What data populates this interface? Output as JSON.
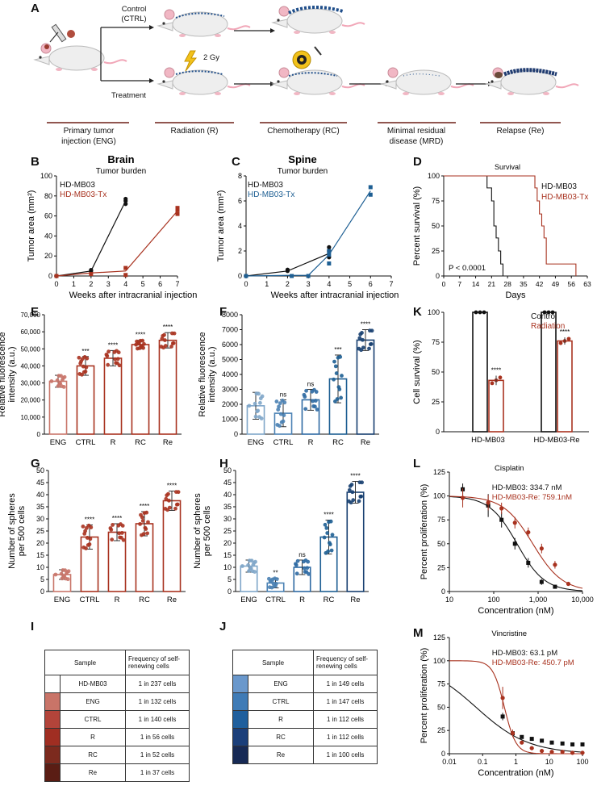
{
  "panels": {
    "A": {
      "letter": "A",
      "control_label": "Control (CTRL)",
      "treatment_label": "Treatment",
      "dose_label": "2 Gy",
      "steps": [
        "Primary tumor injection (ENG)",
        "Radiation (R)",
        "Chemotherapy (RC)",
        "Minimal residual disease (MRD)",
        "Relapse (Re)"
      ]
    },
    "B": {
      "letter": "B",
      "title": "Brain",
      "subtitle": "Tumor burden"
    },
    "C": {
      "letter": "C",
      "title": "Spine",
      "subtitle": "Tumor burden"
    },
    "D": {
      "letter": "D",
      "title": "Survival",
      "pvalue_label": "P < 0.0001"
    },
    "E": {
      "letter": "E"
    },
    "F": {
      "letter": "F"
    },
    "G": {
      "letter": "G"
    },
    "H": {
      "letter": "H"
    },
    "I": {
      "letter": "I"
    },
    "J": {
      "letter": "J"
    },
    "K": {
      "letter": "K"
    },
    "L": {
      "letter": "L",
      "title": "Cisplatin"
    },
    "M": {
      "letter": "M",
      "title": "Vincristine"
    }
  },
  "colors": {
    "red": "#a8321f",
    "blue": "#1e5f93",
    "black": "#111111",
    "lightblue": "#7fa6c9"
  },
  "chart_data": [
    {
      "id": "B",
      "type": "line",
      "title": "Brain",
      "subtitle": "Tumor burden",
      "xlabel": "Weeks after intracranial injection",
      "ylabel": "Tumor area (mm²)",
      "xlim": [
        0,
        7
      ],
      "ylim": [
        0,
        100
      ],
      "xticks": [
        0,
        1,
        2,
        3,
        4,
        5,
        6,
        7
      ],
      "yticks": [
        0,
        20,
        40,
        60,
        80,
        100
      ],
      "series": [
        {
          "name": "HD-MB03",
          "color": "#111111",
          "x": [
            0,
            2,
            4
          ],
          "y": [
            0,
            5,
            75
          ],
          "points": [
            [
              0,
              0
            ],
            [
              2,
              5
            ],
            [
              2,
              6
            ],
            [
              4,
              72
            ],
            [
              4,
              75
            ],
            [
              4,
              77
            ]
          ]
        },
        {
          "name": "HD-MB03-Tx",
          "color": "#a8321f",
          "x": [
            0,
            2,
            4,
            7
          ],
          "y": [
            0,
            3,
            5,
            65
          ],
          "points": [
            [
              0,
              0
            ],
            [
              2,
              2
            ],
            [
              4,
              1
            ],
            [
              4,
              8
            ],
            [
              7,
              62
            ],
            [
              7,
              66
            ],
            [
              7,
              68
            ]
          ]
        }
      ]
    },
    {
      "id": "C",
      "type": "line",
      "title": "Spine",
      "subtitle": "Tumor burden",
      "xlabel": "Weeks after intracranial injection",
      "ylabel": "Tumor area (mm²)",
      "xlim": [
        0,
        7
      ],
      "ylim": [
        0,
        8
      ],
      "xticks": [
        0,
        1,
        2,
        3,
        4,
        5,
        6,
        7
      ],
      "yticks": [
        0,
        2,
        4,
        6,
        8
      ],
      "series": [
        {
          "name": "HD-MB03",
          "color": "#111111",
          "x": [
            0,
            2,
            4
          ],
          "y": [
            0,
            0.4,
            1.8
          ],
          "points": [
            [
              0,
              0
            ],
            [
              2,
              0.4
            ],
            [
              2,
              0.5
            ],
            [
              4,
              1.5
            ],
            [
              4,
              2.0
            ],
            [
              4,
              2.3
            ]
          ]
        },
        {
          "name": "HD-MB03-Tx",
          "color": "#1e5f93",
          "x": [
            0,
            2,
            3,
            4,
            6
          ],
          "y": [
            0,
            0.05,
            0.05,
            1.7,
            6.8
          ],
          "points": [
            [
              0,
              0
            ],
            [
              2.2,
              0
            ],
            [
              3,
              0
            ],
            [
              4,
              1.0
            ],
            [
              4,
              1.7
            ],
            [
              4,
              2.0
            ],
            [
              6,
              6.5
            ],
            [
              6,
              7.1
            ]
          ]
        }
      ]
    },
    {
      "id": "D",
      "type": "line",
      "title": "Survival",
      "xlabel": "Days",
      "ylabel": "Percent survival (%)",
      "xlim": [
        0,
        63
      ],
      "ylim": [
        0,
        100
      ],
      "xticks": [
        0,
        7,
        14,
        21,
        28,
        35,
        42,
        49,
        56,
        63
      ],
      "yticks": [
        0,
        25,
        50,
        75,
        100
      ],
      "series": [
        {
          "name": "HD-MB03",
          "color": "#111111",
          "steps": [
            [
              0,
              100
            ],
            [
              19,
              100
            ],
            [
              19,
              88
            ],
            [
              21,
              88
            ],
            [
              21,
              75
            ],
            [
              22,
              75
            ],
            [
              22,
              50
            ],
            [
              23,
              50
            ],
            [
              23,
              38
            ],
            [
              24,
              38
            ],
            [
              24,
              25
            ],
            [
              25,
              25
            ],
            [
              25,
              12
            ],
            [
              26,
              12
            ],
            [
              26,
              0
            ]
          ]
        },
        {
          "name": "HD-MB03-Tx",
          "color": "#a8321f",
          "steps": [
            [
              0,
              100
            ],
            [
              40,
              100
            ],
            [
              40,
              88
            ],
            [
              41,
              88
            ],
            [
              41,
              75
            ],
            [
              42,
              75
            ],
            [
              42,
              62
            ],
            [
              43,
              62
            ],
            [
              43,
              50
            ],
            [
              44,
              50
            ],
            [
              44,
              38
            ],
            [
              45,
              38
            ],
            [
              45,
              12
            ],
            [
              58,
              12
            ],
            [
              58,
              0
            ]
          ]
        }
      ],
      "annotation": "P < 0.0001"
    },
    {
      "id": "E",
      "type": "bar",
      "ylabel": "Relative fluorescence intensity (a.u.)",
      "categories": [
        "ENG",
        "CTRL",
        "R",
        "RC",
        "Re"
      ],
      "values": [
        31000,
        40000,
        44500,
        52500,
        55000
      ],
      "errors": [
        3500,
        5500,
        4500,
        2500,
        4500
      ],
      "significance": [
        "",
        "***",
        "****",
        "****",
        "****"
      ],
      "ylim": [
        0,
        70000
      ],
      "yticks": [
        0,
        10000,
        20000,
        30000,
        40000,
        50000,
        60000,
        70000
      ],
      "ytick_labels": [
        "0",
        "10,000",
        "20,000",
        "30,000",
        "40,000",
        "50,000",
        "60,000",
        "70,000"
      ],
      "bar_colors": [
        "#c9766a",
        "#a8321f",
        "#a8321f",
        "#a8321f",
        "#a8321f"
      ]
    },
    {
      "id": "F",
      "type": "bar",
      "ylabel": "Relative fluorescence intensity (a.u.)",
      "categories": [
        "ENG",
        "CTRL",
        "R",
        "RC",
        "Re"
      ],
      "values": [
        1900,
        1400,
        2300,
        3700,
        6300
      ],
      "errors": [
        900,
        900,
        700,
        1600,
        700
      ],
      "significance": [
        "",
        "ns",
        "ns",
        "***",
        "****"
      ],
      "ylim": [
        0,
        8000
      ],
      "yticks": [
        0,
        1000,
        2000,
        3000,
        4000,
        5000,
        6000,
        7000,
        8000
      ],
      "ytick_labels": [
        "0",
        "1000",
        "2000",
        "3000",
        "4000",
        "5000",
        "6000",
        "7000",
        "8000"
      ],
      "bar_colors": [
        "#7fa6c9",
        "#4b82b4",
        "#2f6aa3",
        "#1e5f93",
        "#173f70"
      ]
    },
    {
      "id": "G",
      "type": "bar",
      "ylabel": "Number of spheres per 500 cells",
      "categories": [
        "ENG",
        "CTRL",
        "R",
        "RC",
        "Re"
      ],
      "values": [
        7,
        22.5,
        24.5,
        28,
        37.5
      ],
      "errors": [
        2,
        5,
        3.5,
        5,
        4
      ],
      "significance": [
        "",
        "****",
        "****",
        "****",
        "****"
      ],
      "ylim": [
        0,
        50
      ],
      "yticks": [
        0,
        5,
        10,
        15,
        20,
        25,
        30,
        35,
        40,
        45,
        50
      ],
      "ytick_labels": [
        "0",
        "5",
        "10",
        "15",
        "20",
        "25",
        "30",
        "35",
        "40",
        "45",
        "50"
      ],
      "bar_colors": [
        "#c9766a",
        "#a8321f",
        "#a8321f",
        "#a8321f",
        "#a8321f"
      ]
    },
    {
      "id": "H",
      "type": "bar",
      "ylabel": "Number of spheres per 500 cells",
      "categories": [
        "ENG",
        "CTRL",
        "R",
        "RC",
        "Re"
      ],
      "values": [
        10.5,
        3.5,
        10,
        22.5,
        41
      ],
      "errors": [
        2.5,
        2,
        3,
        7,
        4.5
      ],
      "significance": [
        "",
        "**",
        "ns",
        "****",
        "****"
      ],
      "ylim": [
        0,
        50
      ],
      "yticks": [
        0,
        5,
        10,
        15,
        20,
        25,
        30,
        35,
        40,
        45,
        50
      ],
      "ytick_labels": [
        "0",
        "5",
        "10",
        "15",
        "20",
        "25",
        "30",
        "35",
        "40",
        "45",
        "50"
      ],
      "bar_colors": [
        "#7fa6c9",
        "#4b82b4",
        "#2f6aa3",
        "#1e5f93",
        "#173f70"
      ]
    },
    {
      "id": "K",
      "type": "bar",
      "ylabel": "Cell survival (%)",
      "categories": [
        "HD-MB03",
        "HD-MB03-Re"
      ],
      "series": [
        {
          "name": "Control",
          "color": "#111111",
          "values": [
            100,
            100
          ]
        },
        {
          "name": "Radiation",
          "color": "#a8321f",
          "values": [
            43,
            76
          ],
          "errors": [
            4,
            3
          ]
        }
      ],
      "significance": [
        "****",
        "****"
      ],
      "ylim": [
        0,
        100
      ],
      "yticks": [
        0,
        25,
        50,
        75,
        100
      ],
      "ytick_labels": [
        "0",
        "25",
        "50",
        "75",
        "100"
      ]
    },
    {
      "id": "L",
      "type": "scatter",
      "title": "Cisplatin",
      "xlabel": "Concentration (nM)",
      "ylabel": "Percent proliferation (%)",
      "xscale": "log",
      "xlim": [
        10,
        10000
      ],
      "ylim": [
        0,
        125
      ],
      "xticks": [
        10,
        100,
        1000,
        10000
      ],
      "xtick_labels": [
        "10",
        "100",
        "1,000",
        "10,000"
      ],
      "yticks": [
        0,
        25,
        50,
        75,
        100,
        125
      ],
      "ytick_labels": [
        "0",
        "25",
        "50",
        "75",
        "100",
        "125"
      ],
      "series": [
        {
          "name": "HD-MB03: 334.7 nM",
          "color": "#111111",
          "ic50": 334.7,
          "hill": 1.4,
          "x": [
            20,
            75,
            150,
            300,
            600,
            1200,
            2400
          ],
          "y": [
            107,
            90,
            75,
            50,
            30,
            10,
            5
          ],
          "err": [
            6,
            12,
            8,
            6,
            5,
            3,
            2
          ]
        },
        {
          "name": "HD-MB03-Re: 759.1nM",
          "color": "#a8321f",
          "ic50": 759.1,
          "hill": 1.3,
          "x": [
            20,
            75,
            150,
            300,
            600,
            1200,
            2400,
            4800
          ],
          "y": [
            98,
            93,
            87,
            72,
            62,
            45,
            28,
            8
          ],
          "err": [
            10,
            8,
            6,
            6,
            5,
            5,
            4,
            2
          ]
        }
      ]
    },
    {
      "id": "M",
      "type": "scatter",
      "title": "Vincristine",
      "xlabel": "Concentration (nM)",
      "ylabel": "Percent proliferation (%)",
      "xscale": "log",
      "xlim": [
        0.01,
        100
      ],
      "ylim": [
        0,
        125
      ],
      "xticks": [
        0.01,
        0.1,
        1,
        10,
        100
      ],
      "xtick_labels": [
        "0.01",
        "0.1",
        "1",
        "10",
        "100"
      ],
      "yticks": [
        0,
        25,
        50,
        75,
        100,
        125
      ],
      "ytick_labels": [
        "0",
        "25",
        "50",
        "75",
        "100",
        "125"
      ],
      "series": [
        {
          "name": "HD-MB03: 63.1 pM",
          "color": "#111111",
          "ic50": 0.0631,
          "hill": 0.55,
          "x": [
            0.4,
            0.8,
            1.5,
            3,
            6,
            12,
            25,
            50,
            100
          ],
          "y": [
            40,
            22,
            18,
            16,
            14,
            12,
            11,
            10,
            10
          ],
          "err": [
            4,
            3,
            0,
            0,
            0,
            0,
            0,
            0,
            0
          ]
        },
        {
          "name": "HD-MB03-Re: 450.7 pM",
          "color": "#a8321f",
          "ic50": 0.4507,
          "hill": 2.5,
          "x": [
            0.4,
            0.8,
            1.5,
            3,
            6,
            12,
            25,
            50,
            100
          ],
          "y": [
            60,
            22,
            12,
            6,
            3,
            2,
            2,
            1,
            1
          ],
          "err": [
            12,
            4,
            0,
            0,
            0,
            0,
            0,
            0,
            0
          ]
        }
      ]
    }
  ],
  "tables": {
    "I": {
      "headers": [
        "Sample",
        "Frequency of self-renewing cells"
      ],
      "rows": [
        {
          "sample": "HD-MB03",
          "freq": "1 in 237 cells",
          "color": "#ffffff"
        },
        {
          "sample": "ENG",
          "freq": "1 in 132 cells",
          "color": "#c97468"
        },
        {
          "sample": "CTRL",
          "freq": "1 in 140 cells",
          "color": "#b3443a"
        },
        {
          "sample": "R",
          "freq": "1 in 56 cells",
          "color": "#a02e22"
        },
        {
          "sample": "RC",
          "freq": "1 in 52 cells",
          "color": "#7c2a1e"
        },
        {
          "sample": "Re",
          "freq": "1 in 37 cells",
          "color": "#5a1d14"
        }
      ]
    },
    "J": {
      "headers": [
        "Sample",
        "Frequency of self-renewing cells"
      ],
      "rows": [
        {
          "sample": "ENG",
          "freq": "1 in 149 cells",
          "color": "#6a98cc"
        },
        {
          "sample": "CTRL",
          "freq": "1 in 147 cells",
          "color": "#3f7bb6"
        },
        {
          "sample": "R",
          "freq": "1 in 112 cells",
          "color": "#1f5f9d"
        },
        {
          "sample": "RC",
          "freq": "1 in 112 cells",
          "color": "#1b3f7a"
        },
        {
          "sample": "Re",
          "freq": "1 in 100 cells",
          "color": "#172a55"
        }
      ]
    }
  }
}
